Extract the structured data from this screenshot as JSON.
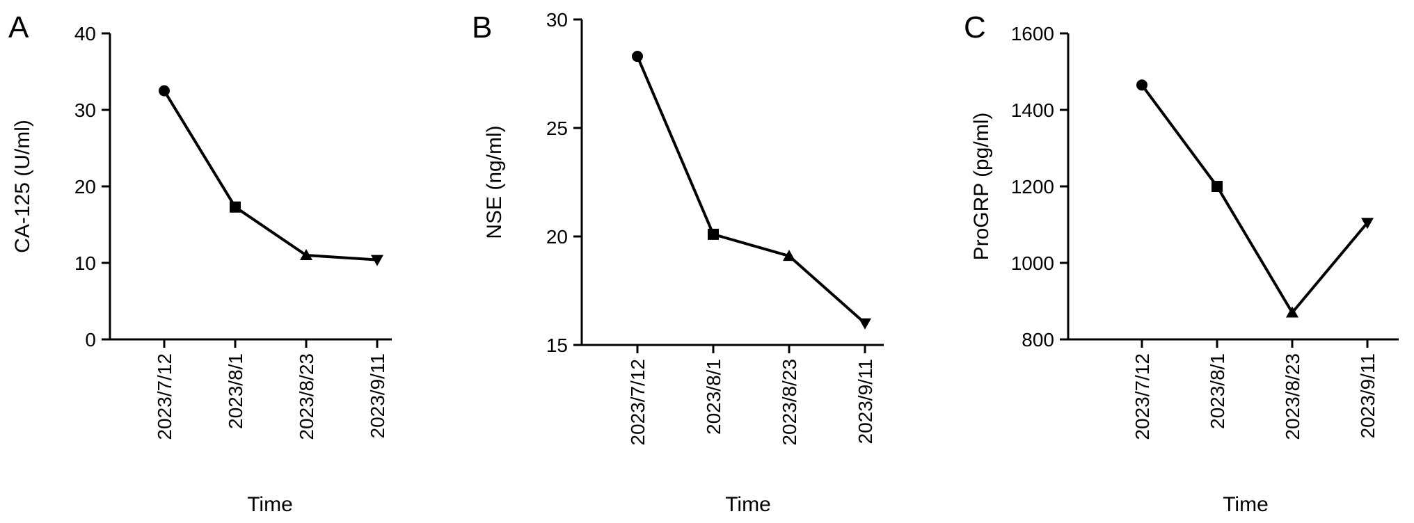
{
  "chart_data": [
    {
      "type": "line",
      "panel": "A",
      "categories": [
        "2023/7/12",
        "2023/8/1",
        "2023/8/23",
        "2023/9/11"
      ],
      "series": [
        {
          "values": [
            32.5,
            17.3,
            11.0,
            10.4
          ]
        }
      ],
      "markers": [
        "circle",
        "square",
        "triangle-up",
        "triangle-down"
      ],
      "ylabel": "CA-125 (U/ml)",
      "xlabel": "Time",
      "ylim": [
        0,
        40
      ],
      "yticks": [
        0,
        10,
        20,
        30,
        40
      ],
      "grid": false
    },
    {
      "type": "line",
      "panel": "B",
      "categories": [
        "2023/7/12",
        "2023/8/1",
        "2023/8/23",
        "2023/9/11"
      ],
      "series": [
        {
          "values": [
            28.3,
            20.1,
            19.1,
            16.0
          ]
        }
      ],
      "markers": [
        "circle",
        "square",
        "triangle-up",
        "triangle-down"
      ],
      "ylabel": "NSE (ng/ml)",
      "xlabel": "Time",
      "ylim": [
        15,
        30
      ],
      "yticks": [
        15,
        20,
        25,
        30
      ],
      "grid": false
    },
    {
      "type": "line",
      "panel": "C",
      "categories": [
        "2023/7/12",
        "2023/8/1",
        "2023/8/23",
        "2023/9/11"
      ],
      "series": [
        {
          "values": [
            1465,
            1200,
            870,
            1105
          ]
        }
      ],
      "markers": [
        "circle",
        "square",
        "triangle-up",
        "triangle-down"
      ],
      "ylabel": "ProGRP (pg/ml)",
      "xlabel": "Time",
      "ylim": [
        800,
        1600
      ],
      "yticks": [
        800,
        1000,
        1200,
        1400,
        1600
      ],
      "grid": false
    }
  ]
}
